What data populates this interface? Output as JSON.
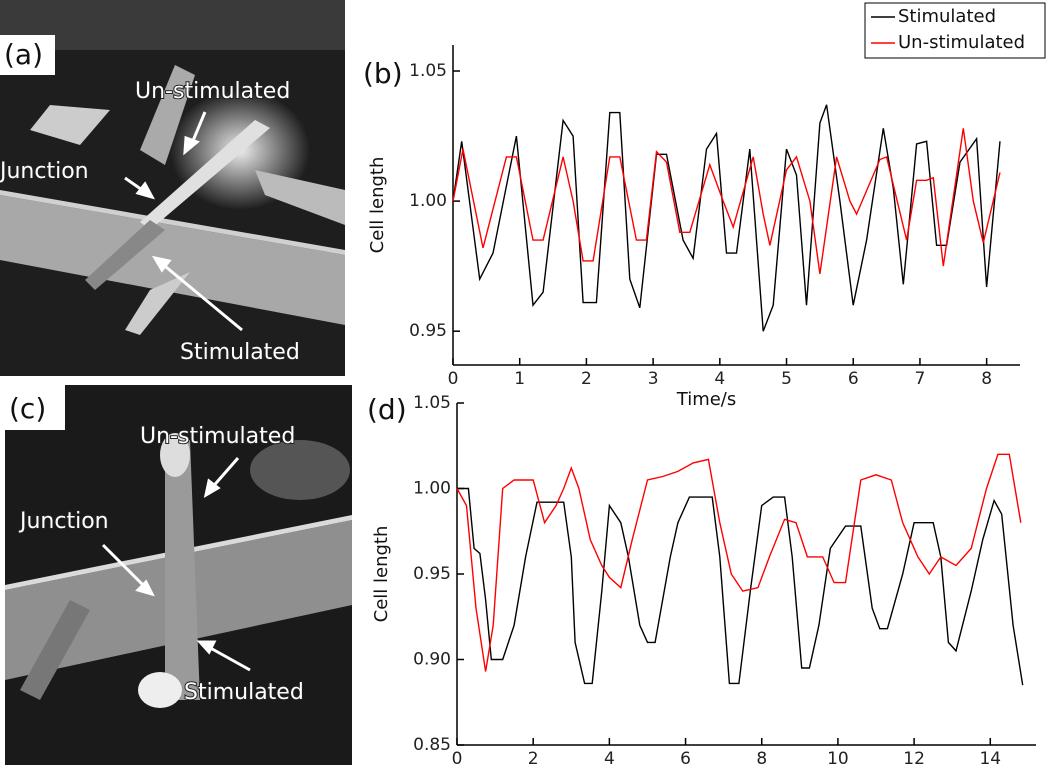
{
  "photos": [
    {
      "panel_label": "(a)",
      "annotations": [
        "Un-stimulated",
        "Junction",
        "Stimulated"
      ]
    },
    {
      "panel_label": "(c)",
      "annotations": [
        "Un-stimulated",
        "Junction",
        "Stimulated"
      ]
    }
  ],
  "chart_data": [
    {
      "type": "line",
      "panel_label": "(b)",
      "x_label": "Time/s",
      "y_label": "Cell length",
      "xlim": [
        0,
        8.5
      ],
      "ylim": [
        0.937,
        1.06
      ],
      "xticks": [
        0,
        1,
        2,
        3,
        4,
        5,
        6,
        7,
        8
      ],
      "yticks": [
        0.95,
        {
          "value": 1.0,
          "label": "1.00"
        },
        1.05
      ],
      "legend": "top-right",
      "series": [
        {
          "name": "Stimulated",
          "color": "#000000",
          "x": [
            0,
            0.13,
            0.4,
            0.6,
            0.95,
            1.2,
            1.35,
            1.65,
            1.8,
            1.95,
            2.15,
            2.35,
            2.5,
            2.65,
            2.8,
            3.05,
            3.2,
            3.45,
            3.6,
            3.8,
            3.95,
            4.1,
            4.25,
            4.45,
            4.65,
            4.8,
            5.0,
            5.15,
            5.3,
            5.5,
            5.6,
            5.8,
            6.0,
            6.2,
            6.45,
            6.6,
            6.75,
            6.95,
            7.1,
            7.25,
            7.4,
            7.6,
            7.85,
            8.0,
            8.2
          ],
          "values": [
            1.0,
            1.023,
            0.97,
            0.98,
            1.025,
            0.96,
            0.965,
            1.031,
            1.025,
            0.961,
            0.961,
            1.034,
            1.034,
            0.97,
            0.959,
            1.018,
            1.018,
            0.985,
            0.978,
            1.02,
            1.026,
            0.98,
            0.98,
            1.02,
            0.95,
            0.96,
            1.02,
            1.01,
            0.96,
            1.03,
            1.037,
            1.0,
            0.96,
            0.985,
            1.028,
            1.005,
            0.968,
            1.022,
            1.023,
            0.983,
            0.983,
            1.015,
            1.024,
            0.967,
            1.023
          ]
        },
        {
          "name": "Un-stimulated",
          "color": "#ff0000",
          "x": [
            0,
            0.15,
            0.45,
            0.8,
            0.95,
            1.2,
            1.35,
            1.65,
            1.8,
            1.95,
            2.1,
            2.35,
            2.5,
            2.75,
            2.9,
            3.05,
            3.2,
            3.4,
            3.55,
            3.85,
            4.05,
            4.2,
            4.5,
            4.65,
            4.75,
            5.0,
            5.15,
            5.35,
            5.5,
            5.75,
            5.95,
            6.05,
            6.4,
            6.5,
            6.8,
            6.95,
            7.1,
            7.2,
            7.35,
            7.65,
            7.8,
            7.95,
            8.2
          ],
          "values": [
            1.0,
            1.02,
            0.982,
            1.017,
            1.017,
            0.985,
            0.985,
            1.017,
            1.0,
            0.977,
            0.977,
            1.017,
            1.017,
            0.985,
            0.985,
            1.019,
            1.015,
            0.988,
            0.988,
            1.014,
            1.0,
            0.99,
            1.017,
            0.995,
            0.983,
            1.012,
            1.017,
            1.0,
            0.972,
            1.017,
            1.0,
            0.995,
            1.016,
            1.017,
            0.985,
            1.008,
            1.008,
            1.009,
            0.975,
            1.028,
            1.0,
            0.984,
            1.011
          ]
        }
      ]
    },
    {
      "type": "line",
      "panel_label": "(d)",
      "x_label": "Time/s",
      "y_label": "Cell length",
      "xlim": [
        0,
        15.2
      ],
      "ylim": [
        0.85,
        1.05
      ],
      "xticks": [
        0,
        2,
        4,
        6,
        8,
        10,
        12,
        14
      ],
      "yticks": [
        0.85,
        {
          "value": 0.9,
          "label": "0.90"
        },
        0.95,
        {
          "value": 1.0,
          "label": "1.00"
        },
        1.05
      ],
      "series": [
        {
          "color": "#000000",
          "x": [
            0,
            0.3,
            0.45,
            0.6,
            0.75,
            0.9,
            1.2,
            1.5,
            1.8,
            2.1,
            2.5,
            2.8,
            3.0,
            3.1,
            3.35,
            3.55,
            3.8,
            4.0,
            4.3,
            4.5,
            4.8,
            5.0,
            5.2,
            5.6,
            5.8,
            6.1,
            6.7,
            6.9,
            7.15,
            7.4,
            7.7,
            8.0,
            8.3,
            8.6,
            8.8,
            9.05,
            9.25,
            9.5,
            9.8,
            10.2,
            10.6,
            10.9,
            11.1,
            11.3,
            11.7,
            12.0,
            12.5,
            12.7,
            12.9,
            13.1,
            13.5,
            13.8,
            14.1,
            14.3,
            14.6,
            14.85
          ],
          "values": [
            1.0,
            1.0,
            0.965,
            0.962,
            0.935,
            0.9,
            0.9,
            0.92,
            0.96,
            0.992,
            0.992,
            0.992,
            0.96,
            0.91,
            0.886,
            0.886,
            0.94,
            0.99,
            0.98,
            0.96,
            0.92,
            0.91,
            0.91,
            0.96,
            0.98,
            0.995,
            0.995,
            0.96,
            0.886,
            0.886,
            0.94,
            0.99,
            0.995,
            0.995,
            0.96,
            0.895,
            0.895,
            0.92,
            0.965,
            0.978,
            0.978,
            0.93,
            0.918,
            0.918,
            0.95,
            0.98,
            0.98,
            0.96,
            0.91,
            0.905,
            0.94,
            0.97,
            0.993,
            0.985,
            0.92,
            0.885
          ]
        },
        {
          "color": "#ff0000",
          "x": [
            0,
            0.25,
            0.5,
            0.75,
            0.95,
            1.2,
            1.5,
            2.0,
            2.3,
            2.6,
            2.8,
            3.0,
            3.2,
            3.5,
            3.8,
            4.0,
            4.3,
            4.6,
            5.0,
            5.4,
            5.8,
            6.2,
            6.6,
            6.9,
            7.2,
            7.5,
            7.9,
            8.2,
            8.6,
            8.9,
            9.2,
            9.6,
            9.9,
            10.2,
            10.6,
            11.0,
            11.4,
            11.7,
            12.1,
            12.4,
            12.7,
            13.1,
            13.5,
            13.9,
            14.2,
            14.5,
            14.8
          ],
          "values": [
            1.0,
            0.99,
            0.93,
            0.893,
            0.92,
            1.0,
            1.005,
            1.005,
            0.98,
            0.99,
            1.0,
            1.012,
            1.0,
            0.97,
            0.955,
            0.948,
            0.942,
            0.97,
            1.005,
            1.007,
            1.01,
            1.015,
            1.017,
            0.98,
            0.95,
            0.94,
            0.942,
            0.96,
            0.982,
            0.98,
            0.96,
            0.96,
            0.945,
            0.945,
            1.005,
            1.008,
            1.005,
            0.98,
            0.96,
            0.95,
            0.96,
            0.955,
            0.965,
            1.0,
            1.02,
            1.02,
            0.98
          ]
        }
      ]
    }
  ]
}
